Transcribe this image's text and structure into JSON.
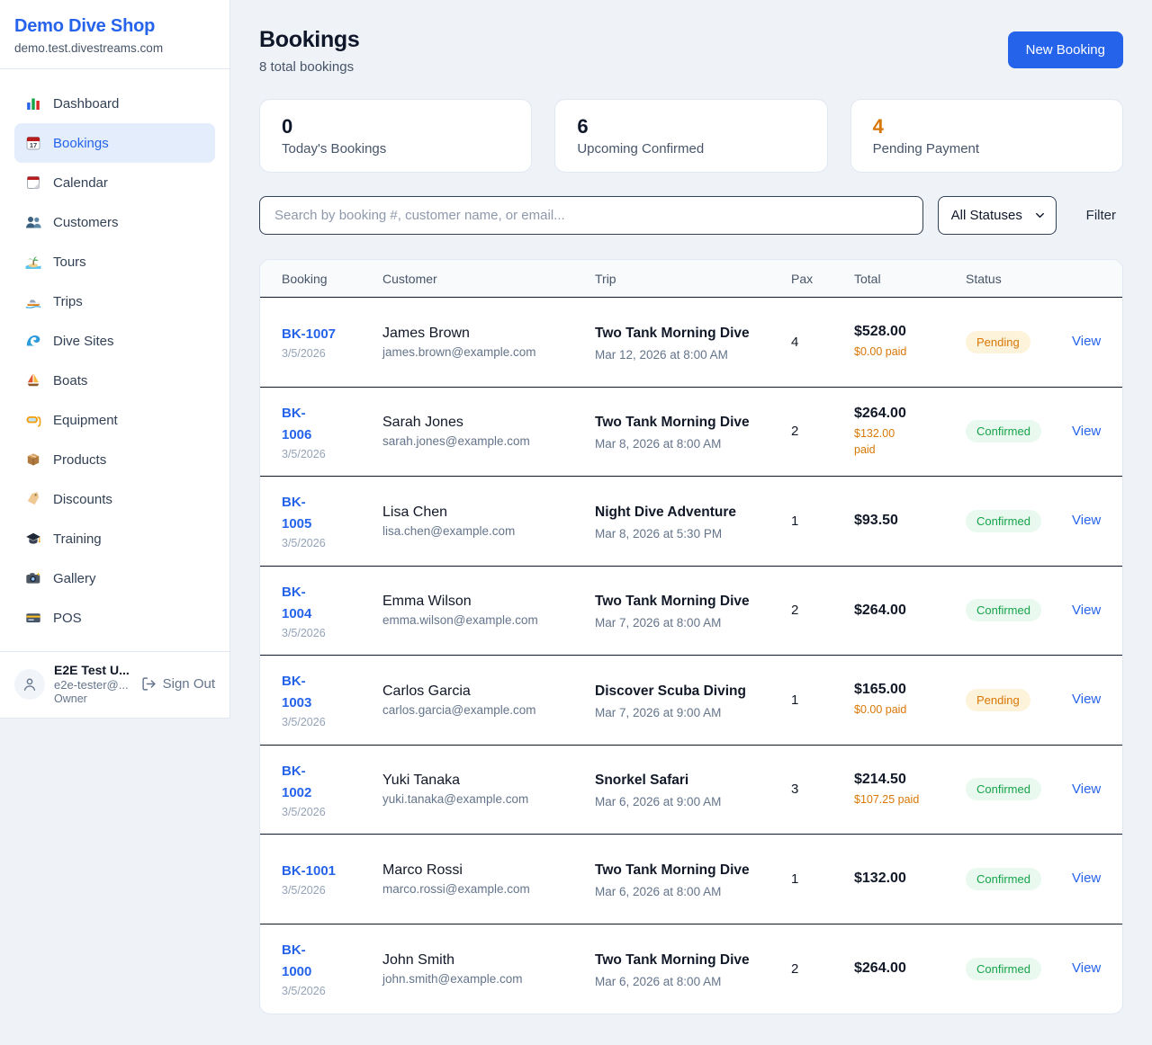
{
  "sidebar": {
    "brand": {
      "name": "Demo Dive Shop",
      "domain": "demo.test.divestreams.com"
    },
    "nav": [
      {
        "icon": "bar-chart",
        "label": "Dashboard",
        "active": false
      },
      {
        "icon": "calendar-17",
        "label": "Bookings",
        "active": true
      },
      {
        "icon": "tear-calendar",
        "label": "Calendar",
        "active": false
      },
      {
        "icon": "users",
        "label": "Customers",
        "active": false
      },
      {
        "icon": "island",
        "label": "Tours",
        "active": false
      },
      {
        "icon": "speedboat",
        "label": "Trips",
        "active": false
      },
      {
        "icon": "wave",
        "label": "Dive Sites",
        "active": false
      },
      {
        "icon": "sailboat",
        "label": "Boats",
        "active": false
      },
      {
        "icon": "diving-mask",
        "label": "Equipment",
        "active": false
      },
      {
        "icon": "package",
        "label": "Products",
        "active": false
      },
      {
        "icon": "tag",
        "label": "Discounts",
        "active": false
      },
      {
        "icon": "grad-cap",
        "label": "Training",
        "active": false
      },
      {
        "icon": "camera",
        "label": "Gallery",
        "active": false
      },
      {
        "icon": "credit-card",
        "label": "POS",
        "active": false
      }
    ],
    "user": {
      "name": "E2E Test U...",
      "email": "e2e-tester@...",
      "role": "Owner",
      "sign_out_label": "Sign Out"
    }
  },
  "header": {
    "title": "Bookings",
    "subtitle": "8 total bookings",
    "new_booking_label": "New Booking"
  },
  "stats": [
    {
      "value": "0",
      "label": "Today's Bookings",
      "highlight": false
    },
    {
      "value": "6",
      "label": "Upcoming Confirmed",
      "highlight": false
    },
    {
      "value": "4",
      "label": "Pending Payment",
      "highlight": true
    }
  ],
  "filters": {
    "search_placeholder": "Search by booking #, customer name, or email...",
    "status_selected": "All Statuses",
    "filter_label": "Filter"
  },
  "table": {
    "columns": [
      "Booking",
      "Customer",
      "Trip",
      "Pax",
      "Total",
      "Status"
    ],
    "view_label": "View",
    "rows": [
      {
        "id": "BK-1007",
        "date": "3/5/2026",
        "customer": "James Brown",
        "email": "james.brown@example.com",
        "trip": "Two Tank Morning Dive",
        "trip_time": "Mar 12, 2026 at 8:00 AM",
        "pax": "4",
        "total": "$528.00",
        "paid": "$0.00 paid",
        "status": "Pending"
      },
      {
        "id": "BK-\n1006",
        "date": "3/5/2026",
        "customer": "Sarah Jones",
        "email": "sarah.jones@example.com",
        "trip": "Two Tank Morning Dive",
        "trip_time": "Mar 8, 2026 at 8:00 AM",
        "pax": "2",
        "total": "$264.00",
        "paid": "$132.00\npaid",
        "status": "Confirmed"
      },
      {
        "id": "BK-\n1005",
        "date": "3/5/2026",
        "customer": "Lisa Chen",
        "email": "lisa.chen@example.com",
        "trip": "Night Dive Adventure",
        "trip_time": "Mar 8, 2026 at 5:30 PM",
        "pax": "1",
        "total": "$93.50",
        "paid": null,
        "status": "Confirmed"
      },
      {
        "id": "BK-\n1004",
        "date": "3/5/2026",
        "customer": "Emma Wilson",
        "email": "emma.wilson@example.com",
        "trip": "Two Tank Morning Dive",
        "trip_time": "Mar 7, 2026 at 8:00 AM",
        "pax": "2",
        "total": "$264.00",
        "paid": null,
        "status": "Confirmed"
      },
      {
        "id": "BK-\n1003",
        "date": "3/5/2026",
        "customer": "Carlos Garcia",
        "email": "carlos.garcia@example.com",
        "trip": "Discover Scuba Diving",
        "trip_time": "Mar 7, 2026 at 9:00 AM",
        "pax": "1",
        "total": "$165.00",
        "paid": "$0.00 paid",
        "status": "Pending"
      },
      {
        "id": "BK-\n1002",
        "date": "3/5/2026",
        "customer": "Yuki Tanaka",
        "email": "yuki.tanaka@example.com",
        "trip": "Snorkel Safari",
        "trip_time": "Mar 6, 2026 at 9:00 AM",
        "pax": "3",
        "total": "$214.50",
        "paid": "$107.25 paid",
        "status": "Confirmed"
      },
      {
        "id": "BK-1001",
        "date": "3/5/2026",
        "customer": "Marco Rossi",
        "email": "marco.rossi@example.com",
        "trip": "Two Tank Morning Dive",
        "trip_time": "Mar 6, 2026 at 8:00 AM",
        "pax": "1",
        "total": "$132.00",
        "paid": null,
        "status": "Confirmed"
      },
      {
        "id": "BK-\n1000",
        "date": "3/5/2026",
        "customer": "John Smith",
        "email": "john.smith@example.com",
        "trip": "Two Tank Morning Dive",
        "trip_time": "Mar 6, 2026 at 8:00 AM",
        "pax": "2",
        "total": "$264.00",
        "paid": null,
        "status": "Confirmed"
      }
    ]
  },
  "colors": {
    "accent": "#2563eb",
    "pending": "#d97706",
    "confirmed": "#16a34a"
  }
}
